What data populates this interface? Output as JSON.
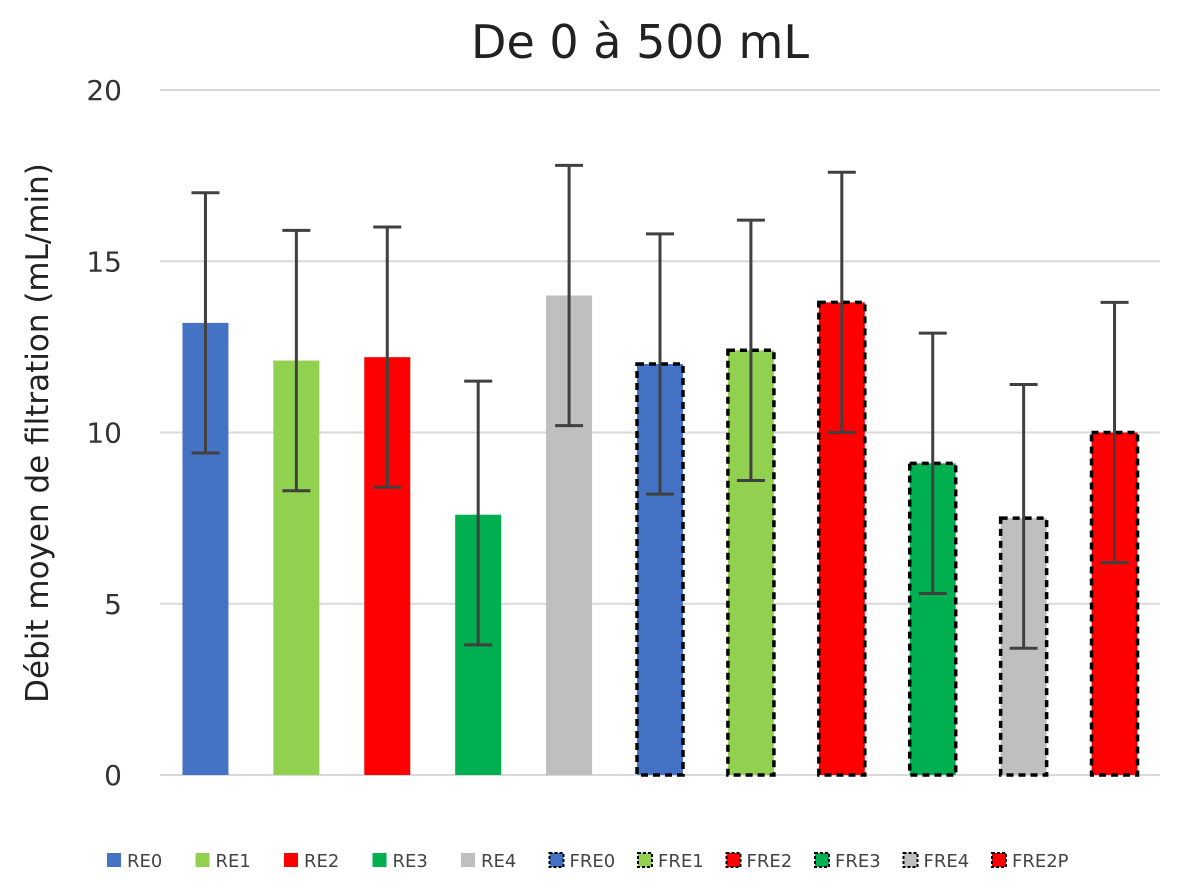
{
  "chart_data": {
    "type": "bar",
    "title": "De 0 à 500 mL",
    "xlabel": "",
    "ylabel": "Débit moyen de filtration (mL/min)",
    "ylim": [
      0,
      20
    ],
    "yticks": [
      0,
      5,
      10,
      15,
      20
    ],
    "grid": true,
    "legend_position": "bottom",
    "categories": [
      "RE0",
      "RE1",
      "RE2",
      "RE3",
      "RE4",
      "FRE0",
      "FRE1",
      "FRE2",
      "FRE3",
      "FRE4",
      "FRE2P"
    ],
    "legend_labels": [
      "RE0",
      "RE1",
      "RE2",
      "RE3",
      "RE4",
      "FRE0",
      "FRE1",
      "FRE2",
      "FRE3",
      "FRE4",
      "FRE2P"
    ],
    "values": [
      13.2,
      12.1,
      12.2,
      7.6,
      14.0,
      12.0,
      12.4,
      13.8,
      9.1,
      7.5,
      10.0
    ],
    "error_low": [
      9.4,
      8.3,
      8.4,
      3.8,
      10.2,
      8.2,
      8.6,
      10.0,
      5.3,
      3.7,
      6.2
    ],
    "error_high": [
      17.0,
      15.9,
      16.0,
      11.5,
      17.8,
      15.8,
      16.2,
      17.6,
      12.9,
      11.4,
      13.8
    ],
    "colors": [
      "#4472c4",
      "#92d050",
      "#ff0000",
      "#00b050",
      "#bfbfbf",
      "#4472c4",
      "#92d050",
      "#ff0000",
      "#00b050",
      "#bfbfbf",
      "#ff0000"
    ],
    "dashed_outline": [
      false,
      false,
      false,
      false,
      false,
      true,
      true,
      true,
      true,
      true,
      true
    ],
    "gridline_color": "#d9d9d9",
    "error_bar_color": "#404040",
    "outline_color": "#000000"
  }
}
